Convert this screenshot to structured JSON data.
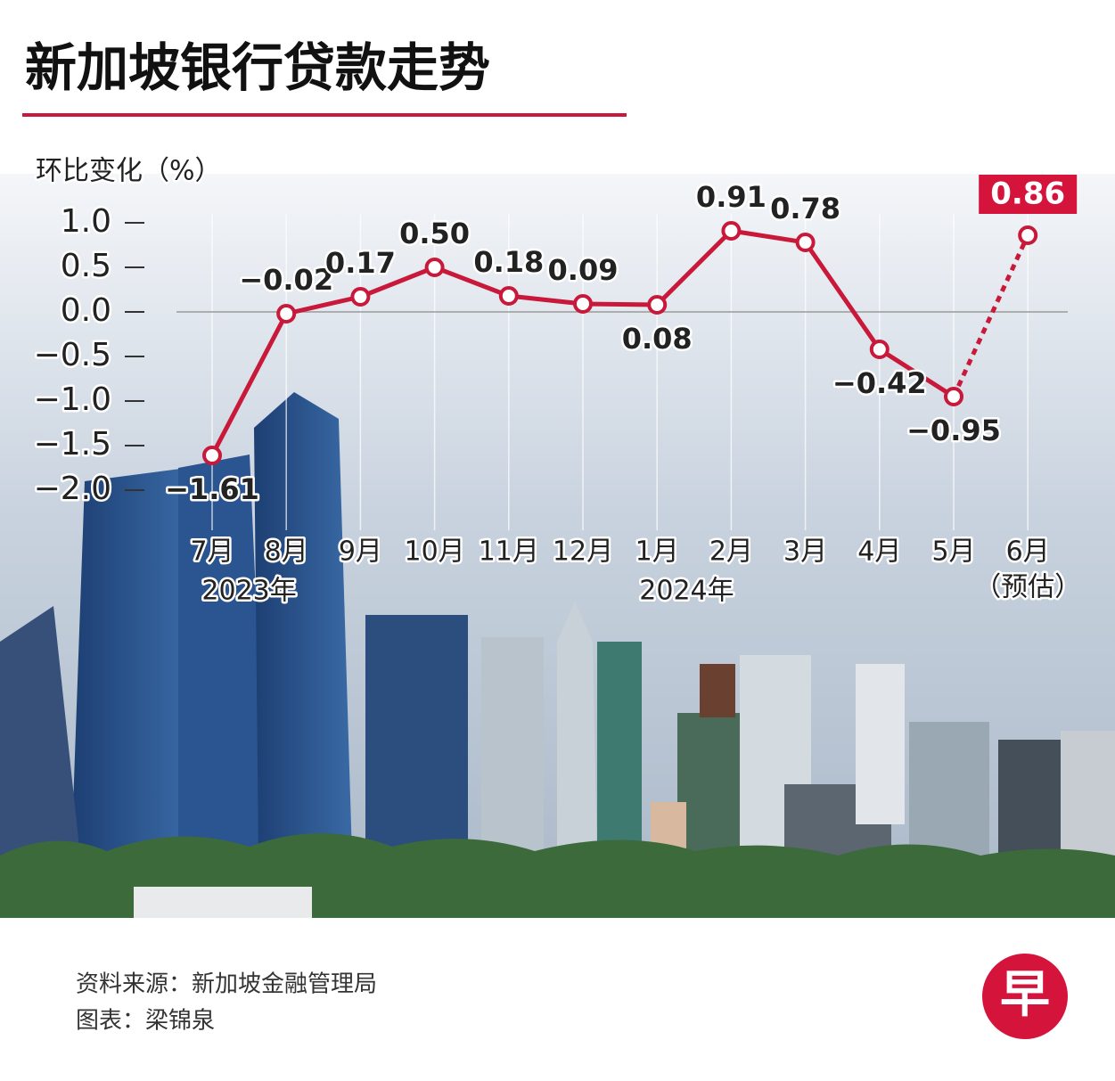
{
  "chart_data": {
    "type": "line",
    "title": "新加坡银行贷款走势",
    "y_label": "环比变化（%）",
    "categories": [
      "7月",
      "8月",
      "9月",
      "10月",
      "11月",
      "12月",
      "1月",
      "2月",
      "3月",
      "4月",
      "5月",
      "6月"
    ],
    "annotations": [
      "2023年",
      "2024年",
      "（预估）"
    ],
    "series": [
      {
        "name": null,
        "color": "#c8193a",
        "values": [
          -1.61,
          -0.02,
          0.17,
          0.5,
          0.18,
          0.09,
          0.08,
          0.91,
          0.78,
          -0.42,
          -0.95,
          0.86
        ],
        "value_labels": [
          "−1.61",
          "−0.02",
          "0.17",
          "0.50",
          "0.18",
          "0.09",
          "0.08",
          "0.91",
          "0.78",
          "−0.42",
          "−0.95",
          "0.86"
        ]
      }
    ],
    "ylim": [
      -2,
      1
    ],
    "yticks": [
      {
        "value": 1,
        "label": "1.0"
      },
      {
        "value": 0.5,
        "label": "0.5"
      },
      {
        "value": 0,
        "label": "0.0"
      },
      {
        "value": -0.5,
        "label": "−0.5"
      },
      {
        "value": -1,
        "label": "−1.0"
      },
      {
        "value": -1.5,
        "label": "−1.5"
      },
      {
        "value": -2,
        "label": "−2.0"
      }
    ],
    "source": "资料来源：新加坡金融管理局",
    "credit": "图表：梁锦泉",
    "logo": "早"
  }
}
